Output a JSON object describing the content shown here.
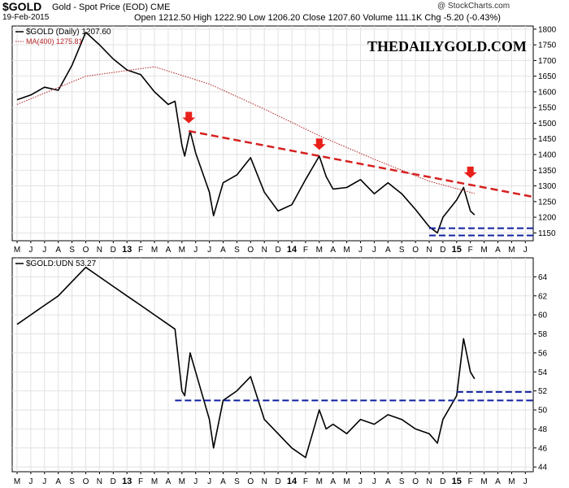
{
  "header": {
    "symbol": "$GOLD",
    "subtitle": "Gold - Spot Price (EOD)  CME",
    "date": "19-Feb-2015",
    "ohlc": "Open 1212.50   High 1222.90   Low 1206.20   Close 1207.60   Volume 111.1K   Chg -5.20 (-0.43%)",
    "credit": "@ StockCharts.com",
    "watermark": "THEDAILYGOLD.COM"
  },
  "colors": {
    "price": "#000000",
    "ma": "#b22222",
    "trendline": "#d62020",
    "arrow": "#e8201a",
    "support": "#1020a0",
    "grid": "#e2e2e2"
  },
  "chart_data": [
    {
      "type": "line",
      "title": "$GOLD (Daily) 1207.60",
      "legend": [
        {
          "label": "$GOLD (Daily) 1207.60",
          "color": "#000000"
        },
        {
          "label": "MA(400) 1275.81",
          "color": "#b22222"
        }
      ],
      "legend_position": "top-left",
      "grid": true,
      "x_ticks": [
        "M",
        "J",
        "J",
        "A",
        "S",
        "O",
        "N",
        "D",
        "13",
        "F",
        "M",
        "A",
        "M",
        "J",
        "J",
        "A",
        "S",
        "O",
        "N",
        "D",
        "14",
        "F",
        "M",
        "A",
        "M",
        "J",
        "J",
        "A",
        "S",
        "O",
        "N",
        "D",
        "15",
        "F",
        "M",
        "A",
        "M",
        "J"
      ],
      "y_ticks": [
        1150,
        1200,
        1250,
        1300,
        1350,
        1400,
        1450,
        1500,
        1550,
        1600,
        1650,
        1700,
        1750,
        1800
      ],
      "ylim": [
        1125,
        1810
      ],
      "series": [
        {
          "name": "$GOLD (Daily)",
          "color": "#000000",
          "points": [
            [
              0,
              1575
            ],
            [
              1,
              1590
            ],
            [
              2,
              1615
            ],
            [
              3,
              1605
            ],
            [
              4,
              1685
            ],
            [
              5,
              1790
            ],
            [
              6,
              1750
            ],
            [
              7,
              1705
            ],
            [
              8,
              1670
            ],
            [
              9,
              1655
            ],
            [
              10,
              1600
            ],
            [
              11,
              1560
            ],
            [
              11.5,
              1570
            ],
            [
              12,
              1430
            ],
            [
              12.2,
              1395
            ],
            [
              12.6,
              1475
            ],
            [
              13,
              1405
            ],
            [
              14,
              1280
            ],
            [
              14.3,
              1205
            ],
            [
              15,
              1310
            ],
            [
              16,
              1335
            ],
            [
              17,
              1390
            ],
            [
              18,
              1280
            ],
            [
              19,
              1220
            ],
            [
              20,
              1240
            ],
            [
              21,
              1320
            ],
            [
              22,
              1395
            ],
            [
              22.5,
              1330
            ],
            [
              23,
              1290
            ],
            [
              24,
              1295
            ],
            [
              25,
              1320
            ],
            [
              26,
              1275
            ],
            [
              27,
              1310
            ],
            [
              28,
              1275
            ],
            [
              29,
              1225
            ],
            [
              30,
              1170
            ],
            [
              30.6,
              1150
            ],
            [
              31,
              1200
            ],
            [
              32,
              1255
            ],
            [
              32.5,
              1295
            ],
            [
              33,
              1220
            ],
            [
              33.3,
              1207.6
            ]
          ]
        },
        {
          "name": "MA(400)",
          "color": "#b22222",
          "dashed": true,
          "points": [
            [
              0,
              1560
            ],
            [
              5,
              1650
            ],
            [
              10,
              1680
            ],
            [
              14,
              1625
            ],
            [
              18,
              1545
            ],
            [
              22,
              1460
            ],
            [
              26,
              1385
            ],
            [
              30,
              1315
            ],
            [
              33.3,
              1275.8
            ]
          ]
        }
      ],
      "annotations": {
        "trendline": [
          [
            12.5,
            1475
          ],
          [
            38,
            1265
          ]
        ],
        "arrows_at": [
          [
            12.5,
            1500
          ],
          [
            22,
            1415
          ],
          [
            33,
            1325
          ]
        ],
        "support_lines": [
          [
            [
              30,
              1165
            ],
            [
              38,
              1165
            ]
          ],
          [
            [
              30,
              1142
            ],
            [
              38,
              1142
            ]
          ]
        ]
      }
    },
    {
      "type": "line",
      "title": "$GOLD:UDN 53.27",
      "legend": [
        {
          "label": "$GOLD:UDN 53.27",
          "color": "#000000"
        }
      ],
      "legend_position": "top-left",
      "grid": true,
      "x_ticks": [
        "M",
        "J",
        "J",
        "A",
        "S",
        "O",
        "N",
        "D",
        "13",
        "F",
        "M",
        "A",
        "M",
        "J",
        "J",
        "A",
        "S",
        "O",
        "N",
        "D",
        "14",
        "F",
        "M",
        "A",
        "M",
        "J",
        "J",
        "A",
        "S",
        "O",
        "N",
        "D",
        "15",
        "F",
        "M",
        "A",
        "M",
        "J"
      ],
      "y_ticks": [
        44,
        46,
        48,
        50,
        52,
        54,
        56,
        58,
        60,
        62,
        64
      ],
      "ylim": [
        43.5,
        66
      ],
      "series": [
        {
          "name": "$GOLD:UDN",
          "color": "#000000",
          "points": [
            [
              0,
              59
            ],
            [
              1,
              60
            ],
            [
              2,
              61
            ],
            [
              3,
              62
            ],
            [
              4,
              63.5
            ],
            [
              5,
              65
            ],
            [
              6,
              64
            ],
            [
              7,
              63
            ],
            [
              8,
              62
            ],
            [
              9,
              61
            ],
            [
              10,
              60
            ],
            [
              11,
              59
            ],
            [
              11.5,
              58.5
            ],
            [
              12,
              52
            ],
            [
              12.2,
              51.5
            ],
            [
              12.6,
              56
            ],
            [
              13,
              54
            ],
            [
              14,
              49
            ],
            [
              14.3,
              46
            ],
            [
              15,
              51
            ],
            [
              16,
              52
            ],
            [
              17,
              53.5
            ],
            [
              18,
              49
            ],
            [
              19,
              47.5
            ],
            [
              20,
              46
            ],
            [
              21,
              45
            ],
            [
              22,
              50
            ],
            [
              22.5,
              48
            ],
            [
              23,
              48.5
            ],
            [
              24,
              47.5
            ],
            [
              25,
              49
            ],
            [
              26,
              48.5
            ],
            [
              27,
              49.5
            ],
            [
              28,
              49
            ],
            [
              29,
              48
            ],
            [
              30,
              47.5
            ],
            [
              30.6,
              46.5
            ],
            [
              31,
              49
            ],
            [
              32,
              51.5
            ],
            [
              32.5,
              57.5
            ],
            [
              33,
              54
            ],
            [
              33.3,
              53.27
            ]
          ]
        }
      ],
      "annotations": {
        "support_lines": [
          [
            [
              11.5,
              51
            ],
            [
              38,
              51
            ]
          ],
          [
            [
              32,
              51.9
            ],
            [
              38,
              51.9
            ]
          ]
        ]
      }
    }
  ]
}
